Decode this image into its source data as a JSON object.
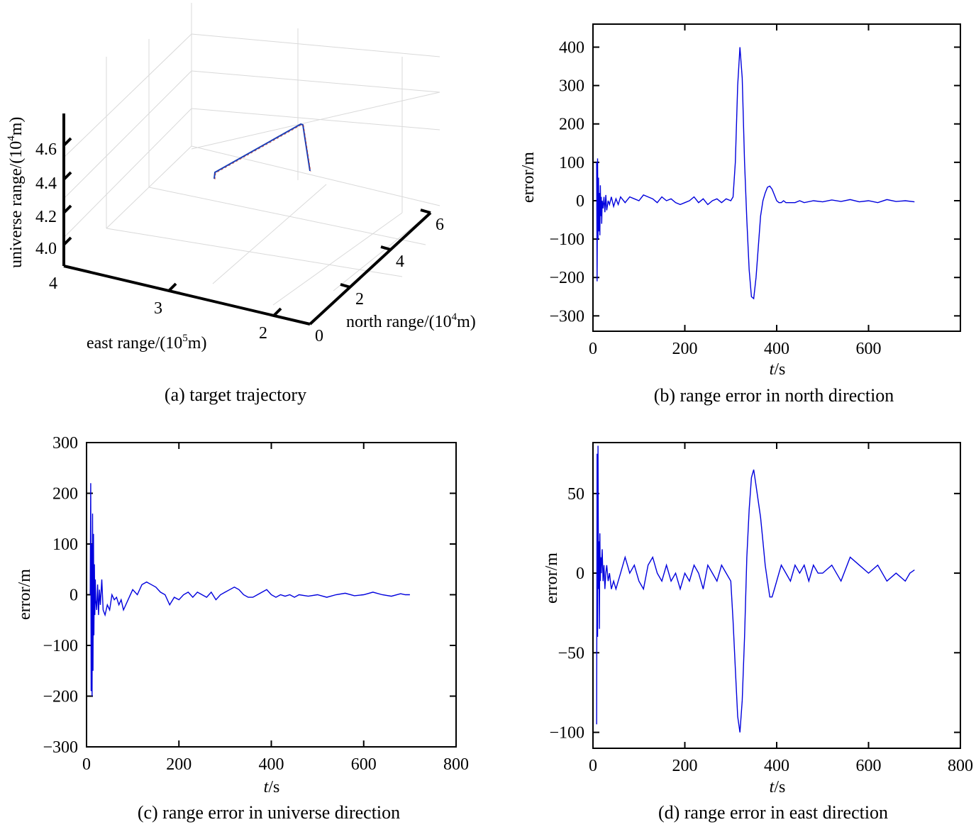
{
  "panels": {
    "a": {
      "caption": "(a) target trajectory",
      "xlabel_main": "east range/(10",
      "xlabel_sup": "5",
      "xlabel_tail": "m)",
      "ylabel_main": "north range/(10",
      "ylabel_sup": "4",
      "ylabel_tail": "m)",
      "zlabel_main": "universe range/(10",
      "zlabel_sup": "4",
      "zlabel_tail": "m)"
    },
    "b": {
      "caption": "(b) range error in north direction",
      "ylabel": "error/m",
      "xlabel_t": "t",
      "xlabel_unit": "/s"
    },
    "c": {
      "caption": "(c) range error in universe direction",
      "ylabel": "error/m",
      "xlabel_t": "t",
      "xlabel_unit": "/s"
    },
    "d": {
      "caption": "(d) range error in east direction",
      "ylabel": "error/m",
      "xlabel_t": "t",
      "xlabel_unit": "/s"
    }
  },
  "colors": {
    "line": "#0000dd",
    "axis": "#000000",
    "grid3d": "#d9d9d9",
    "traj_red": "#c0392b"
  },
  "chart_data": [
    {
      "id": "a",
      "type": "line",
      "projection": "3d",
      "title": "(a) target trajectory",
      "xlabel": "east range/(10^5m)",
      "ylabel": "north range/(10^4m)",
      "zlabel": "universe range/(10^4m)",
      "x_ticks": [
        "2",
        "3",
        "4"
      ],
      "y_ticks": [
        "0",
        "2",
        "4",
        "6"
      ],
      "z_ticks": [
        "4.0",
        "4.2",
        "4.4",
        "4.6"
      ],
      "xlim": [
        1.8,
        4.0
      ],
      "ylim": [
        0,
        6
      ],
      "zlim": [
        3.95,
        4.8
      ],
      "series": [
        {
          "x": [
            3.1,
            3.1,
            2.45,
            2.45,
            2.2
          ],
          "y": [
            0.3,
            0.35,
            3.0,
            3.05,
            2.5
          ],
          "z": [
            4.55,
            4.56,
            4.72,
            4.71,
            4.45
          ]
        }
      ]
    },
    {
      "id": "b",
      "type": "line",
      "title": "(b) range error in north direction",
      "xlabel": "t/s",
      "ylabel": "error/m",
      "xlim": [
        0,
        800
      ],
      "ylim": [
        -340,
        460
      ],
      "xticks": [
        0,
        200,
        400,
        600
      ],
      "yticks": [
        -300,
        -200,
        -100,
        0,
        100,
        200,
        300,
        400
      ],
      "series": [
        {
          "x": [
            8,
            9,
            10,
            11,
            12,
            13,
            14,
            15,
            16,
            17,
            18,
            19,
            20,
            22,
            24,
            26,
            28,
            30,
            33,
            36,
            40,
            45,
            50,
            55,
            60,
            70,
            80,
            90,
            100,
            110,
            120,
            130,
            140,
            150,
            160,
            170,
            180,
            190,
            200,
            210,
            220,
            230,
            240,
            250,
            260,
            270,
            280,
            290,
            300,
            305,
            310,
            315,
            320,
            325,
            330,
            335,
            340,
            345,
            350,
            355,
            360,
            365,
            370,
            375,
            380,
            385,
            390,
            395,
            400,
            405,
            410,
            415,
            420,
            425,
            430,
            440,
            450,
            460,
            480,
            500,
            520,
            540,
            560,
            580,
            600,
            620,
            640,
            660,
            680,
            700
          ],
          "y": [
            100,
            -210,
            110,
            -100,
            60,
            -80,
            20,
            -90,
            40,
            -40,
            10,
            -60,
            0,
            -20,
            10,
            -30,
            15,
            -25,
            0,
            -10,
            10,
            -15,
            5,
            -10,
            10,
            -5,
            10,
            5,
            0,
            15,
            10,
            5,
            -5,
            10,
            0,
            5,
            -5,
            -10,
            -5,
            0,
            10,
            -5,
            5,
            -10,
            0,
            5,
            -5,
            5,
            0,
            10,
            100,
            300,
            400,
            320,
            100,
            -50,
            -180,
            -250,
            -255,
            -200,
            -120,
            -40,
            0,
            20,
            35,
            38,
            30,
            15,
            0,
            -5,
            -5,
            0,
            -5,
            -5,
            -5,
            -5,
            0,
            -5,
            0,
            -3,
            2,
            -2,
            3,
            -3,
            0,
            -5,
            3,
            -2,
            0,
            -3
          ]
        }
      ]
    },
    {
      "id": "c",
      "type": "line",
      "title": "(c) range error in universe direction",
      "xlabel": "t/s",
      "ylabel": "error/m",
      "xlim": [
        0,
        800
      ],
      "ylim": [
        -300,
        300
      ],
      "xticks": [
        0,
        200,
        400,
        600,
        800
      ],
      "yticks": [
        -300,
        -200,
        -100,
        0,
        100,
        200,
        300
      ],
      "series": [
        {
          "x": [
            8,
            9,
            10,
            11,
            12,
            13,
            14,
            15,
            16,
            17,
            18,
            19,
            20,
            22,
            24,
            26,
            28,
            30,
            33,
            36,
            40,
            45,
            50,
            55,
            60,
            65,
            70,
            75,
            80,
            90,
            100,
            110,
            120,
            130,
            140,
            150,
            160,
            170,
            180,
            190,
            200,
            210,
            220,
            230,
            240,
            250,
            260,
            270,
            280,
            290,
            300,
            310,
            320,
            330,
            340,
            350,
            360,
            370,
            380,
            390,
            400,
            410,
            420,
            430,
            440,
            450,
            460,
            480,
            500,
            520,
            540,
            560,
            580,
            600,
            620,
            640,
            660,
            680,
            690,
            700
          ],
          "y": [
            0,
            220,
            -190,
            100,
            -200,
            160,
            -150,
            120,
            -80,
            60,
            -40,
            30,
            -10,
            -30,
            20,
            -40,
            10,
            -20,
            30,
            -30,
            -40,
            -20,
            -30,
            0,
            -10,
            -5,
            -20,
            -10,
            -30,
            -10,
            10,
            0,
            20,
            25,
            20,
            15,
            5,
            0,
            -20,
            -5,
            -10,
            0,
            5,
            -5,
            5,
            0,
            -5,
            5,
            -10,
            0,
            5,
            10,
            15,
            10,
            0,
            -5,
            -5,
            0,
            5,
            10,
            0,
            -5,
            0,
            -3,
            0,
            -5,
            0,
            -3,
            0,
            -5,
            0,
            3,
            -2,
            0,
            5,
            0,
            -3,
            2,
            0,
            0
          ]
        }
      ]
    },
    {
      "id": "d",
      "type": "line",
      "title": "(d) range error in east direction",
      "xlabel": "t/s",
      "ylabel": "error/m",
      "xlim": [
        0,
        800
      ],
      "ylim": [
        -110,
        82
      ],
      "xticks": [
        0,
        200,
        400,
        600,
        800
      ],
      "yticks": [
        -100,
        -50,
        0,
        50
      ],
      "series": [
        {
          "x": [
            8,
            9,
            10,
            11,
            12,
            13,
            14,
            15,
            16,
            17,
            18,
            20,
            22,
            24,
            26,
            28,
            30,
            33,
            36,
            40,
            45,
            50,
            55,
            60,
            65,
            70,
            75,
            80,
            90,
            100,
            110,
            120,
            130,
            140,
            150,
            160,
            170,
            180,
            190,
            200,
            210,
            220,
            230,
            240,
            250,
            260,
            270,
            280,
            290,
            300,
            305,
            310,
            315,
            320,
            325,
            330,
            335,
            340,
            345,
            350,
            355,
            360,
            365,
            370,
            375,
            380,
            385,
            390,
            395,
            400,
            405,
            410,
            420,
            430,
            440,
            450,
            460,
            470,
            480,
            490,
            500,
            520,
            540,
            560,
            580,
            600,
            620,
            640,
            660,
            680,
            690,
            700
          ],
          "y": [
            -95,
            75,
            -40,
            80,
            -10,
            20,
            -35,
            25,
            -5,
            10,
            0,
            15,
            -5,
            5,
            -10,
            0,
            5,
            -5,
            0,
            -10,
            -5,
            -10,
            -5,
            0,
            5,
            10,
            5,
            0,
            5,
            -5,
            -10,
            5,
            10,
            0,
            -5,
            5,
            -5,
            0,
            -10,
            0,
            -5,
            5,
            0,
            -10,
            5,
            0,
            -5,
            5,
            0,
            -5,
            -30,
            -60,
            -90,
            -100,
            -80,
            -40,
            10,
            40,
            60,
            65,
            55,
            45,
            35,
            20,
            5,
            -5,
            -15,
            -15,
            -10,
            -5,
            0,
            5,
            0,
            -5,
            5,
            0,
            5,
            -5,
            5,
            0,
            0,
            5,
            -5,
            10,
            5,
            0,
            5,
            -5,
            0,
            -5,
            0,
            2
          ]
        }
      ]
    }
  ]
}
